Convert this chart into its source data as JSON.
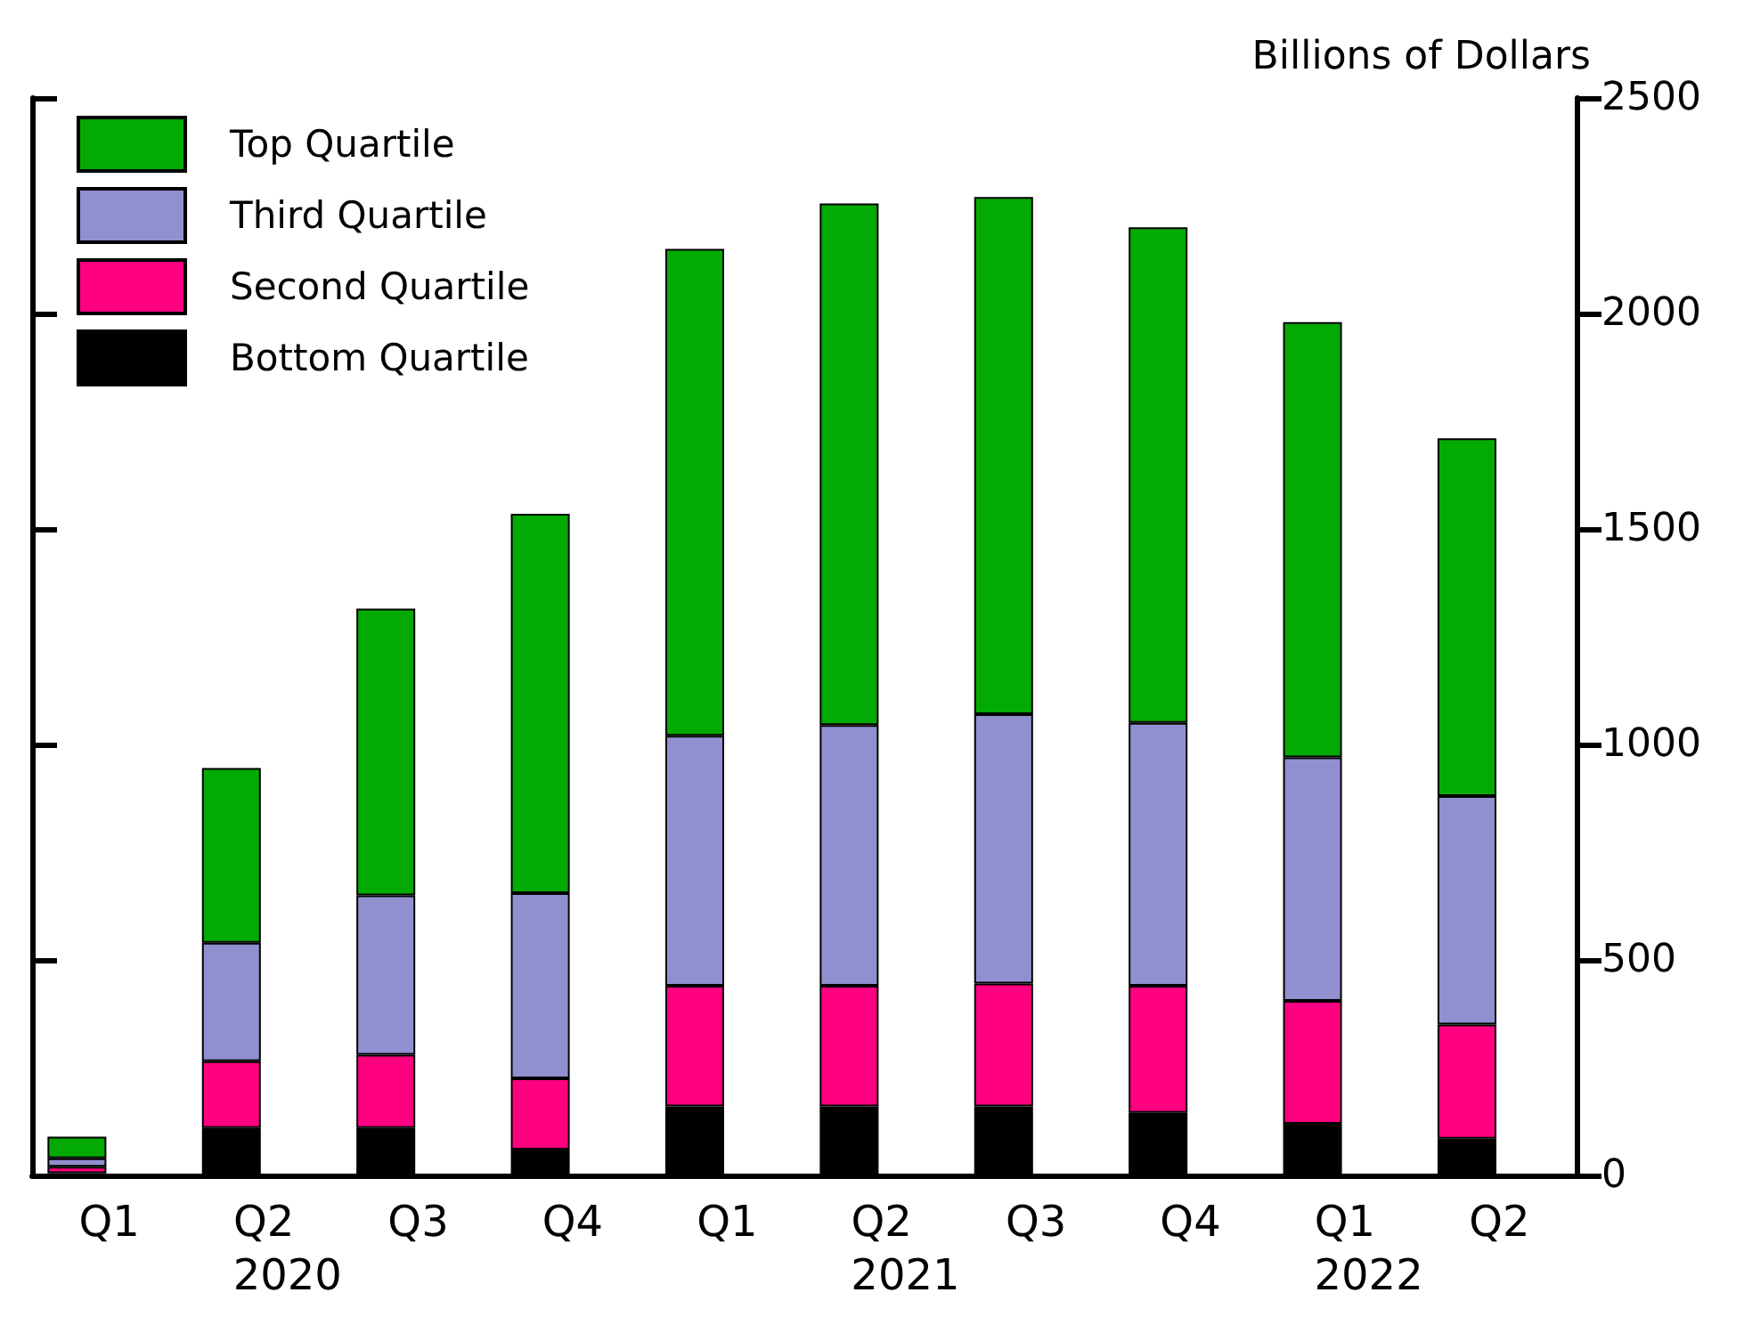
{
  "chart_data": {
    "type": "bar",
    "stacked": true,
    "ylabel": "Billions of Dollars",
    "categories": [
      "Q1",
      "Q2",
      "Q3",
      "Q4",
      "Q1",
      "Q2",
      "Q3",
      "Q4",
      "Q1",
      "Q2"
    ],
    "series": [
      {
        "name": "Bottom Quartile",
        "color": "#000000",
        "values": [
          5,
          110,
          110,
          60,
          160,
          160,
          160,
          145,
          120,
          85
        ]
      },
      {
        "name": "Second Quartile",
        "color": "#ff0080",
        "values": [
          15,
          155,
          170,
          165,
          280,
          280,
          285,
          295,
          285,
          265
        ]
      },
      {
        "name": "Third Quartile",
        "color": "#9090d0",
        "values": [
          20,
          275,
          370,
          430,
          580,
          605,
          625,
          610,
          565,
          530
        ]
      },
      {
        "name": "Top Quartile",
        "color": "#03aa03",
        "values": [
          50,
          405,
          665,
          880,
          1130,
          1210,
          1200,
          1150,
          1010,
          830
        ]
      }
    ],
    "ylim": [
      0,
      2500
    ],
    "yticks": [
      0,
      500,
      1000,
      1500,
      2000,
      2500
    ],
    "grid": false,
    "legend": "top left",
    "annotations": [
      "2020",
      "2021",
      "2022"
    ]
  }
}
